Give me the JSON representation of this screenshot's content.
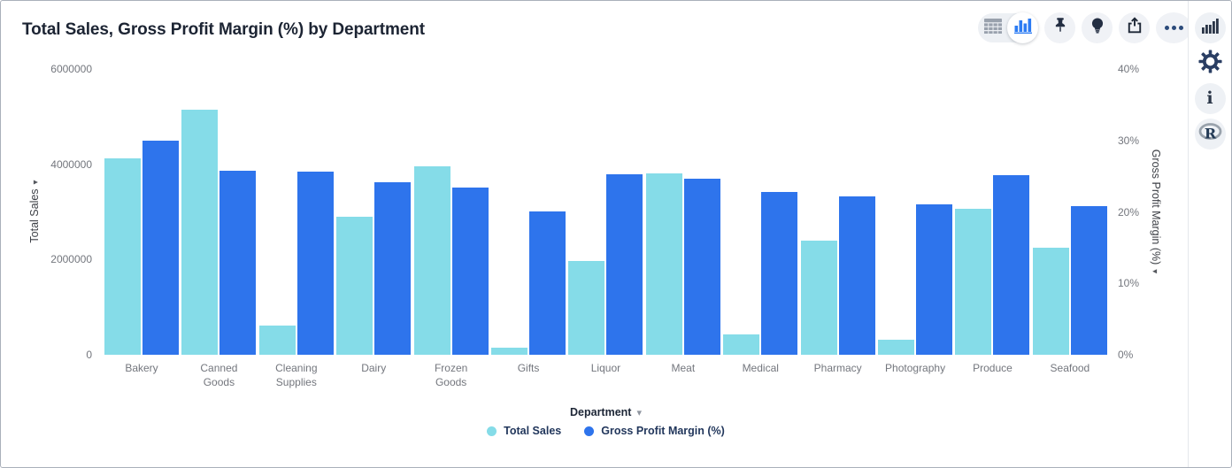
{
  "header": {
    "title": "Total Sales, Gross Profit Margin (%) by Department"
  },
  "glyphs": {
    "sort_caret": "▾",
    "dropdown_caret": "▾"
  },
  "toolbar": {
    "icons": [
      "table-view-icon",
      "chart-view-icon",
      "pin-icon",
      "lightbulb-icon",
      "share-icon",
      "more-options-icon"
    ],
    "selected_view": "chart"
  },
  "right_rail": {
    "icons": [
      "chart-type-icon",
      "settings-gear-icon",
      "info-icon",
      "r-analysis-icon"
    ]
  },
  "colors": {
    "accent_blue": "#2E74EC",
    "accent_cyan": "#85DCE8",
    "title_text": "#1c2433",
    "tick_text": "#73767d"
  },
  "chart_data": {
    "type": "bar",
    "title": "Total Sales, Gross Profit Margin (%) by Department",
    "categories": [
      "Bakery",
      "Canned Goods",
      "Cleaning Supplies",
      "Dairy",
      "Frozen Goods",
      "Gifts",
      "Liquor",
      "Meat",
      "Medical",
      "Pharmacy",
      "Photography",
      "Produce",
      "Seafood"
    ],
    "category_display": [
      "Bakery",
      "Canned\nGoods",
      "Cleaning\nSupplies",
      "Dairy",
      "Frozen\nGoods",
      "Gifts",
      "Liquor",
      "Meat",
      "Medical",
      "Pharmacy",
      "Photography",
      "Produce",
      "Seafood"
    ],
    "series": [
      {
        "name": "Total Sales",
        "axis": "left",
        "color": "#85DCE8",
        "values": [
          4130000,
          5150000,
          620000,
          2900000,
          3960000,
          155000,
          1975000,
          3800000,
          430000,
          2390000,
          310000,
          3060000,
          2250000
        ]
      },
      {
        "name": "Gross Profit Margin (%)",
        "axis": "right",
        "color": "#2E74EC",
        "values": [
          30.0,
          25.8,
          25.6,
          24.1,
          23.4,
          20.1,
          25.3,
          24.7,
          22.8,
          22.2,
          21.1,
          25.2,
          20.8
        ]
      }
    ],
    "x_axis": {
      "label": "Department"
    },
    "left_axis": {
      "label": "Total Sales",
      "min": 0,
      "max": 6000000,
      "ticks": [
        {
          "value": 0,
          "label": "0"
        },
        {
          "value": 2000000,
          "label": "2000000"
        },
        {
          "value": 4000000,
          "label": "4000000"
        },
        {
          "value": 6000000,
          "label": "6000000"
        }
      ]
    },
    "right_axis": {
      "label": "Gross Profit Margin (%)",
      "min": 0,
      "max": 40,
      "ticks": [
        {
          "value": 0,
          "label": "0%"
        },
        {
          "value": 10,
          "label": "10%"
        },
        {
          "value": 20,
          "label": "20%"
        },
        {
          "value": 30,
          "label": "30%"
        },
        {
          "value": 40,
          "label": "40%"
        }
      ]
    },
    "grid": false,
    "legend_position": "bottom"
  }
}
